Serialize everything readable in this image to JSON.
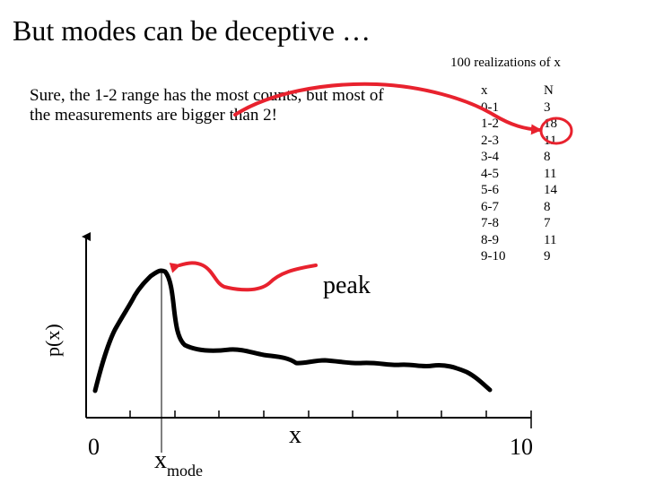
{
  "slide": {
    "title": "But modes can be deceptive …",
    "note": "Sure, the 1-2 range has the most counts, but most of the measurements are bigger than 2!",
    "peak_label": "peak"
  },
  "table": {
    "caption": "100 realizations of x",
    "header_x": "x",
    "header_n": "N",
    "rows": [
      {
        "range": "0-1",
        "count": "3"
      },
      {
        "range": "1-2",
        "count": "18"
      },
      {
        "range": "2-3",
        "count": "11"
      },
      {
        "range": "3-4",
        "count": "8"
      },
      {
        "range": "4-5",
        "count": "11"
      },
      {
        "range": "5-6",
        "count": "14"
      },
      {
        "range": "6-7",
        "count": "8"
      },
      {
        "range": "7-8",
        "count": "7"
      },
      {
        "range": "8-9",
        "count": "11"
      },
      {
        "range": "9-10",
        "count": "9"
      }
    ]
  },
  "plot": {
    "y_label": "p(x)",
    "x_label": "x",
    "x_start": "0",
    "x_end": "10",
    "mode_label": "x",
    "mode_subscript": "mode"
  },
  "colors": {
    "annotation": "#e8222e",
    "ink": "#000000"
  }
}
